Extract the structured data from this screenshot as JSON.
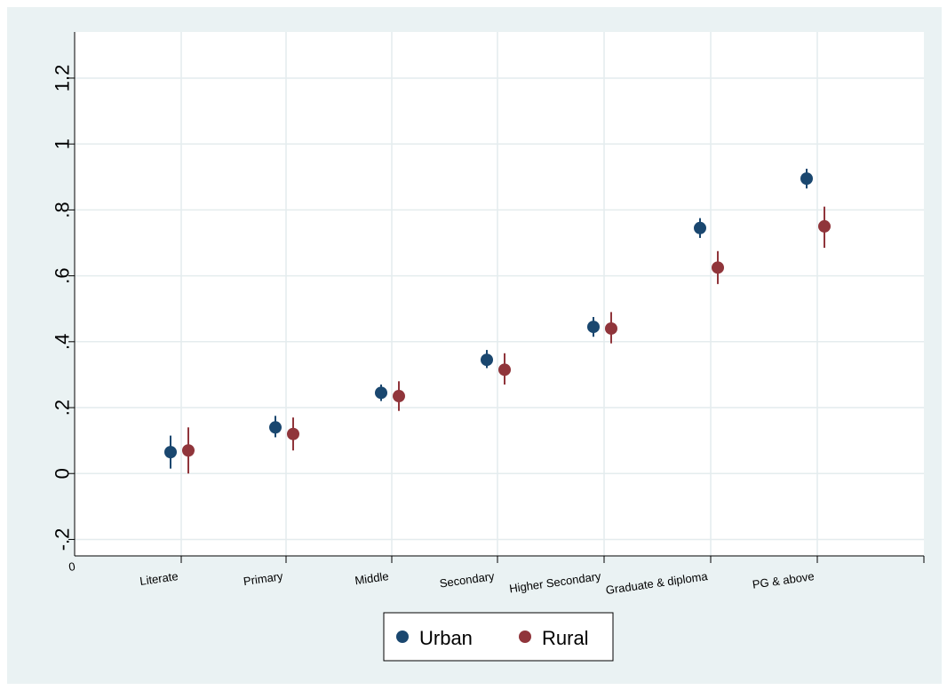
{
  "chart_data": {
    "type": "scatter",
    "categories": [
      "Literate",
      "Primary",
      "Middle",
      "Secondary",
      "Higher Secondary",
      "Graduate & diploma",
      "PG & above"
    ],
    "series": [
      {
        "name": "Urban",
        "color": "#1a476f",
        "values": [
          0.065,
          0.14,
          0.245,
          0.345,
          0.445,
          0.745,
          0.895
        ],
        "ci_low": [
          0.015,
          0.11,
          0.22,
          0.32,
          0.415,
          0.715,
          0.865
        ],
        "ci_high": [
          0.115,
          0.175,
          0.27,
          0.375,
          0.475,
          0.775,
          0.925
        ]
      },
      {
        "name": "Rural",
        "color": "#90353b",
        "values": [
          0.07,
          0.12,
          0.235,
          0.315,
          0.44,
          0.625,
          0.75
        ],
        "ci_low": [
          0.0,
          0.07,
          0.19,
          0.27,
          0.395,
          0.575,
          0.685
        ],
        "ci_high": [
          0.14,
          0.17,
          0.28,
          0.365,
          0.49,
          0.675,
          0.81
        ]
      }
    ],
    "y_ticks": [
      "-.2",
      "0",
      ".2",
      ".4",
      ".6",
      ".8",
      "1",
      "1.2"
    ],
    "y_tick_values": [
      -0.2,
      0,
      0.2,
      0.4,
      0.6,
      0.8,
      1,
      1.2
    ],
    "x_axis_start_label": "0",
    "ylim": [
      -0.25,
      1.34
    ],
    "xlabel": "",
    "ylabel": "",
    "grid": true,
    "legend_position": "bottom"
  }
}
